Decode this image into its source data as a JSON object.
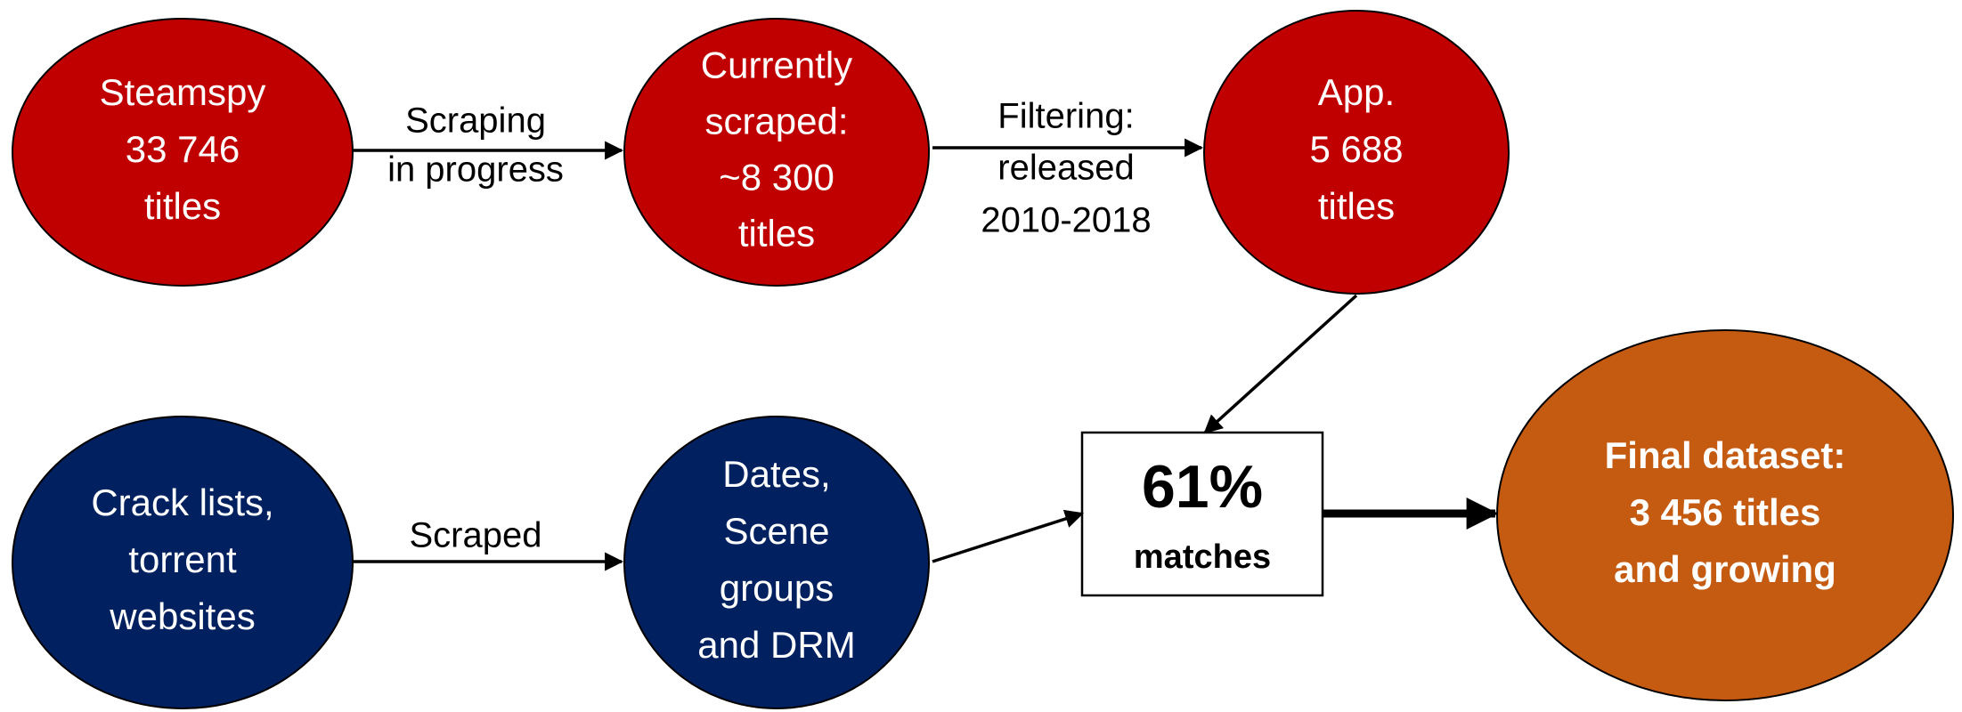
{
  "nodes": [
    {
      "lines": [
        "Steamspy",
        "33 746",
        "titles"
      ]
    },
    {
      "lines": [
        "Currently",
        "scraped:",
        "~8 300",
        "titles"
      ]
    },
    {
      "lines": [
        "App.",
        "5 688",
        "titles"
      ]
    },
    {
      "lines": [
        "Crack lists,",
        "torrent",
        "websites"
      ]
    },
    {
      "lines": [
        "Dates,",
        "Scene",
        "groups",
        "and DRM"
      ]
    },
    {
      "lines": [
        "61%",
        "matches"
      ]
    },
    {
      "lines": [
        "Final dataset:",
        "3 456 titles",
        "and growing"
      ]
    }
  ],
  "edges": [
    {
      "lines": [
        "Scraping",
        "in progress"
      ]
    },
    {
      "lines": [
        "Filtering:",
        "released",
        "2010-2018"
      ]
    },
    {
      "lines": []
    },
    {
      "lines": [
        "Scraped"
      ]
    },
    {
      "lines": []
    },
    {
      "lines": []
    }
  ]
}
